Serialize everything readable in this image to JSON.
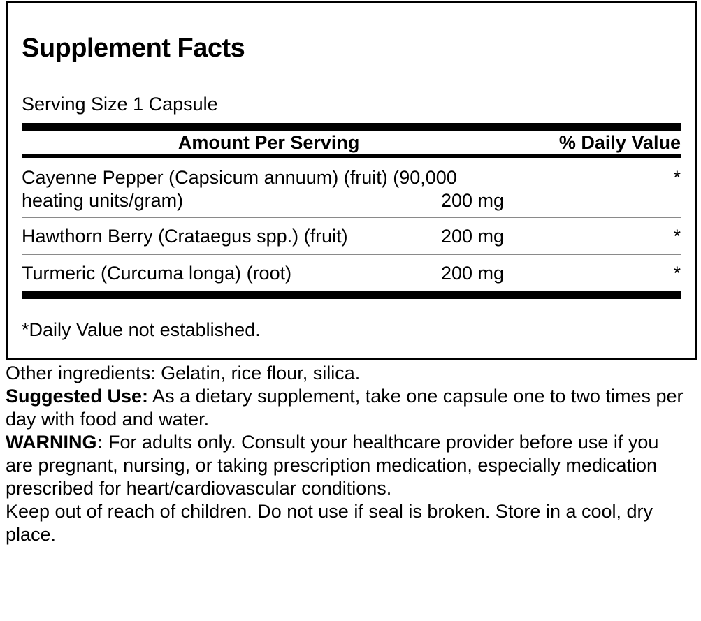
{
  "panel": {
    "title": "Supplement Facts",
    "serving_size": "Serving Size 1 Capsule",
    "header": {
      "amount_col": "Amount Per Serving",
      "dv_col": "% Daily Value"
    },
    "rows": [
      {
        "name": "Cayenne Pepper (Capsicum annuum) (fruit) (90,000 heating units/gram)",
        "amount": "200 mg",
        "dv": "*"
      },
      {
        "name": "Hawthorn Berry (Crataegus spp.) (fruit)",
        "amount": "200 mg",
        "dv": "*"
      },
      {
        "name": "Turmeric (Curcuma longa) (root)",
        "amount": "200 mg",
        "dv": "*"
      }
    ],
    "footnote": "*Daily Value not established."
  },
  "details": {
    "other_ingredients": "Other ingredients: Gelatin, rice flour, silica.",
    "suggested_use": {
      "label": "Suggested Use:",
      "text": " As a dietary supplement, take one capsule one to two times per day with food and water."
    },
    "warning": {
      "label": "WARNING:",
      "text": " For adults only. Consult your healthcare provider before use if you are pregnant, nursing, or taking prescription medication, especially medication prescribed for heart/cardiovascular conditions."
    },
    "storage": "Keep out of reach of children. Do not use if seal is broken. Store in a cool, dry place."
  },
  "colors": {
    "text": "#000000",
    "background": "#ffffff",
    "rule": "#000000",
    "separator": "#8a8a8a"
  }
}
